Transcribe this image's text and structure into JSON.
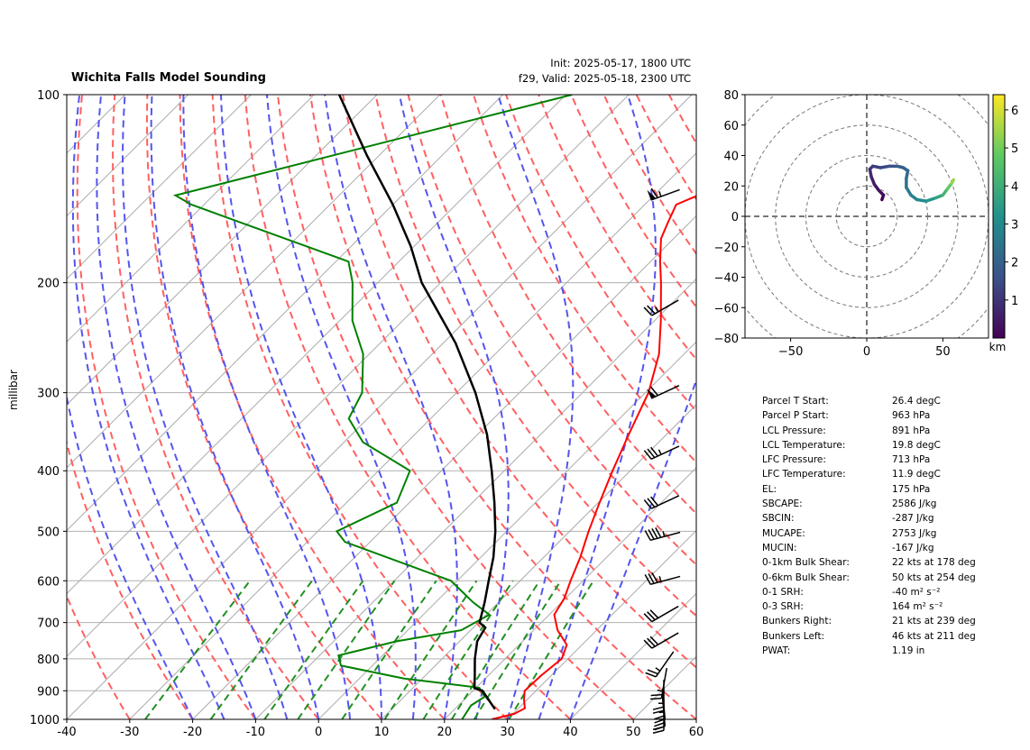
{
  "title_left": "Wichita Falls Model Sounding",
  "title_right_line1": "Init: 2025-05-17, 1800 UTC",
  "title_right_line2": "f29, Valid: 2025-05-18, 2300 UTC",
  "colors": {
    "temperature": "#ff0000",
    "dewpoint": "#008000",
    "parcel": "#000000",
    "dry_adiabat": "#ff6060",
    "moist_adiabat": "#5555ee",
    "mixing_ratio": "#209020",
    "isotherm": "#aaaaaa",
    "isobar": "#b0b0b0"
  },
  "chart_data": [
    {
      "type": "skewt",
      "ylabel": "millibar",
      "xlim": [
        -40,
        60
      ],
      "ylim": [
        1000,
        100
      ],
      "x_ticks": [
        "-40",
        "-30",
        "-20",
        "-10",
        "0",
        "10",
        "20",
        "30",
        "40",
        "50",
        "60"
      ],
      "y_ticks": [
        "100",
        "200",
        "300",
        "400",
        "500",
        "600",
        "700",
        "800",
        "900",
        "1000"
      ],
      "temperature_profile": [
        [
          1000,
          27.5
        ],
        [
          980,
          30.2
        ],
        [
          960,
          31.0
        ],
        [
          930,
          29.5
        ],
        [
          900,
          28.2
        ],
        [
          850,
          28.4
        ],
        [
          800,
          29.0
        ],
        [
          760,
          27.6
        ],
        [
          720,
          23.8
        ],
        [
          680,
          20.8
        ],
        [
          640,
          19.8
        ],
        [
          600,
          18.0
        ],
        [
          550,
          15.8
        ],
        [
          500,
          13.0
        ],
        [
          450,
          10.2
        ],
        [
          400,
          7.2
        ],
        [
          350,
          4.0
        ],
        [
          300,
          0.5
        ],
        [
          260,
          -4.0
        ],
        [
          230,
          -9.0
        ],
        [
          200,
          -15.0
        ],
        [
          185,
          -18.5
        ],
        [
          170,
          -22.0
        ],
        [
          160,
          -23.5
        ],
        [
          150,
          -25.0
        ],
        [
          140,
          -21.0
        ],
        [
          130,
          -17.0
        ],
        [
          120,
          -12.0
        ],
        [
          110,
          -6.5
        ],
        [
          100,
          -2.0
        ]
      ],
      "dewpoint_profile": [
        [
          1000,
          22.8
        ],
        [
          950,
          22.0
        ],
        [
          920,
          22.8
        ],
        [
          890,
          20.5
        ],
        [
          860,
          7.0
        ],
        [
          820,
          -5.0
        ],
        [
          790,
          -7.0
        ],
        [
          750,
          0.0
        ],
        [
          720,
          8.5
        ],
        [
          680,
          10.5
        ],
        [
          650,
          6.0
        ],
        [
          600,
          -1.0
        ],
        [
          520,
          -24.0
        ],
        [
          500,
          -27.0
        ],
        [
          450,
          -22.0
        ],
        [
          400,
          -25.0
        ],
        [
          360,
          -37.0
        ],
        [
          330,
          -43.0
        ],
        [
          300,
          -45.0
        ],
        [
          260,
          -51.0
        ],
        [
          230,
          -58.0
        ],
        [
          200,
          -64.0
        ],
        [
          185,
          -68.0
        ],
        [
          150,
          -102.0
        ],
        [
          145,
          -106.0
        ],
        [
          100,
          -59.0
        ]
      ],
      "parcel_profile": [
        [
          963,
          26.4
        ],
        [
          900,
          21.5
        ],
        [
          891,
          19.8
        ],
        [
          850,
          17.8
        ],
        [
          800,
          15.2
        ],
        [
          750,
          12.8
        ],
        [
          713,
          11.9
        ],
        [
          700,
          10.2
        ],
        [
          650,
          7.8
        ],
        [
          600,
          5.0
        ],
        [
          550,
          2.0
        ],
        [
          500,
          -1.8
        ],
        [
          450,
          -6.5
        ],
        [
          400,
          -12.0
        ],
        [
          350,
          -18.5
        ],
        [
          300,
          -27.0
        ],
        [
          250,
          -38.0
        ],
        [
          200,
          -53.0
        ],
        [
          175,
          -60.5
        ],
        [
          150,
          -70.0
        ],
        [
          125,
          -82.0
        ],
        [
          100,
          -96.0
        ]
      ],
      "wind_barbs": [
        {
          "p": 145,
          "dir": 250,
          "spd": 65
        },
        {
          "p": 220,
          "dir": 240,
          "spd": 25
        },
        {
          "p": 300,
          "dir": 245,
          "spd": 60
        },
        {
          "p": 375,
          "dir": 245,
          "spd": 35
        },
        {
          "p": 450,
          "dir": 245,
          "spd": 30
        },
        {
          "p": 510,
          "dir": 255,
          "spd": 45
        },
        {
          "p": 600,
          "dir": 255,
          "spd": 35
        },
        {
          "p": 680,
          "dir": 240,
          "spd": 30
        },
        {
          "p": 750,
          "dir": 240,
          "spd": 30
        },
        {
          "p": 820,
          "dir": 215,
          "spd": 25
        },
        {
          "p": 880,
          "dir": 190,
          "spd": 25
        },
        {
          "p": 920,
          "dir": 180,
          "spd": 25
        },
        {
          "p": 950,
          "dir": 175,
          "spd": 25
        },
        {
          "p": 975,
          "dir": 175,
          "spd": 25
        },
        {
          "p": 990,
          "dir": 180,
          "spd": 20
        }
      ]
    },
    {
      "type": "hodograph",
      "xlim": [
        -80,
        80
      ],
      "ylim": [
        -80,
        80
      ],
      "x_ticks": [
        "−50",
        "0",
        "50"
      ],
      "y_ticks": [
        "80",
        "60",
        "40",
        "20",
        "0",
        "−20",
        "−40",
        "−60",
        "−80"
      ],
      "rings": [
        20,
        40,
        60,
        80,
        100
      ],
      "colorbar_label": "km",
      "colorbar_ticks": [
        "1",
        "2",
        "3",
        "4",
        "5",
        "6"
      ],
      "colorbar_range": [
        0,
        6.4
      ],
      "points": [
        [
          10,
          11,
          0.0
        ],
        [
          11,
          14,
          0.2
        ],
        [
          8,
          17,
          0.4
        ],
        [
          5,
          21,
          0.6
        ],
        [
          3,
          26,
          0.8
        ],
        [
          2,
          31,
          1.0
        ],
        [
          4,
          33,
          1.2
        ],
        [
          9,
          32,
          1.4
        ],
        [
          15,
          33,
          1.6
        ],
        [
          20,
          33,
          1.8
        ],
        [
          24,
          32,
          2.0
        ],
        [
          27,
          30,
          2.2
        ],
        [
          26,
          25,
          2.4
        ],
        [
          26,
          19,
          2.6
        ],
        [
          29,
          14,
          2.8
        ],
        [
          33,
          11,
          3.0
        ],
        [
          39,
          10,
          3.3
        ],
        [
          45,
          12,
          3.7
        ],
        [
          50,
          14,
          4.2
        ],
        [
          53,
          18,
          4.8
        ],
        [
          56,
          22,
          5.4
        ],
        [
          57,
          24,
          5.8
        ]
      ]
    }
  ],
  "parameters": [
    {
      "label": "Parcel T Start:",
      "value": "26.4 degC"
    },
    {
      "label": "Parcel P Start:",
      "value": "963 hPa"
    },
    {
      "label": "LCL Pressure:",
      "value": "891 hPa"
    },
    {
      "label": "LCL Temperature:",
      "value": "19.8 degC"
    },
    {
      "label": "LFC Pressure:",
      "value": "713 hPa"
    },
    {
      "label": "LFC Temperature:",
      "value": "11.9 degC"
    },
    {
      "label": "EL:",
      "value": "175 hPa"
    },
    {
      "label": "SBCAPE:",
      "value": "2586 J/kg"
    },
    {
      "label": "SBCIN:",
      "value": "-287 J/kg"
    },
    {
      "label": "MUCAPE:",
      "value": "2753 J/kg"
    },
    {
      "label": "MUCIN:",
      "value": "-167 J/kg"
    },
    {
      "label": "0-1km Bulk Shear:",
      "value": "22 kts at 178 deg"
    },
    {
      "label": "0-6km Bulk Shear:",
      "value": "50 kts at 254 deg"
    },
    {
      "label": "0-1 SRH:",
      "value": "-40 m² s⁻²"
    },
    {
      "label": "0-3 SRH:",
      "value": "164 m² s⁻²"
    },
    {
      "label": "Bunkers Right:",
      "value": "21 kts at 239 deg"
    },
    {
      "label": "Bunkers Left:",
      "value": "46 kts at 211 deg"
    },
    {
      "label": "PWAT:",
      "value": "1.19 in"
    }
  ]
}
